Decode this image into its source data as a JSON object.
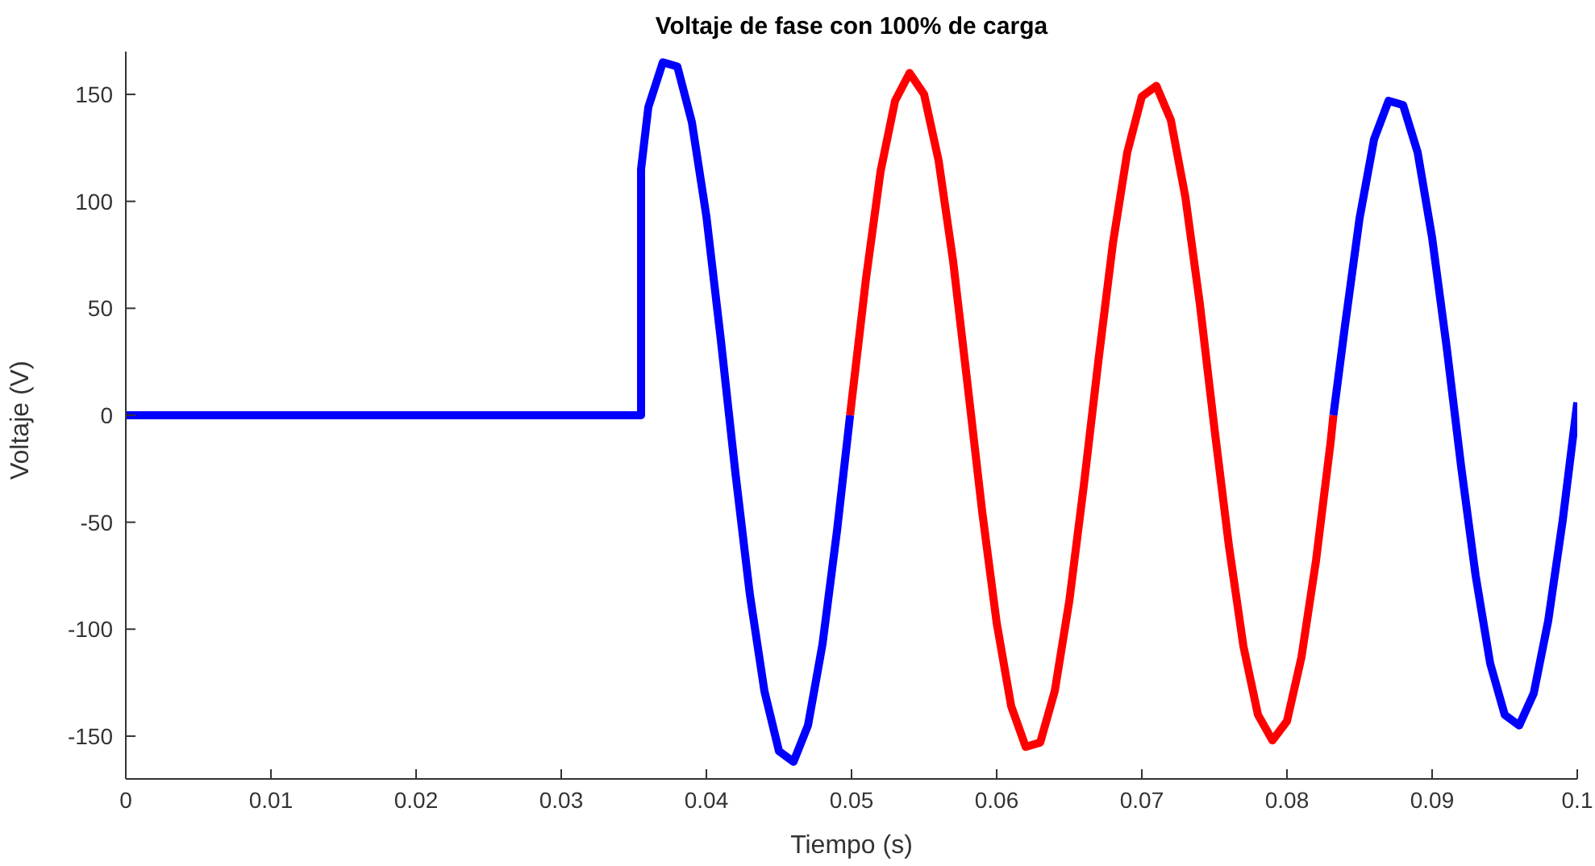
{
  "chart_data": {
    "type": "line",
    "title": "Voltaje de fase con 100% de carga",
    "xlabel": "Tiempo (s)",
    "ylabel": "Voltaje (V)",
    "xlim": [
      0,
      0.1
    ],
    "xticks": [
      0,
      0.01,
      0.02,
      0.03,
      0.04,
      0.05,
      0.06,
      0.07,
      0.08,
      0.09,
      0.1
    ],
    "ylim": [
      -170,
      170
    ],
    "yticks": [
      -150,
      -100,
      -50,
      0,
      50,
      100,
      150
    ],
    "grid": false,
    "legend": false,
    "marker": "none",
    "line_style": "solid",
    "series": [
      {
        "color": "#0000ff",
        "x": [
          0,
          0.0355,
          0.0355,
          0.036,
          0.037,
          0.038,
          0.039,
          0.04,
          0.041,
          0.042,
          0.043,
          0.044,
          0.045,
          0.046,
          0.047,
          0.048,
          0.049,
          0.0499
        ],
        "values": [
          0,
          0,
          115,
          144,
          165,
          163,
          137,
          93,
          35,
          -27,
          -84,
          -129,
          -157,
          -162,
          -145,
          -107,
          -54,
          0
        ]
      },
      {
        "color": "#ff0000",
        "x": [
          0.0499,
          0.05,
          0.051,
          0.052,
          0.053,
          0.054,
          0.055,
          0.056,
          0.057,
          0.058,
          0.059,
          0.06,
          0.061,
          0.062,
          0.063,
          0.064,
          0.065,
          0.066,
          0.067,
          0.068,
          0.069,
          0.07,
          0.071,
          0.072,
          0.073,
          0.074,
          0.075,
          0.076,
          0.077,
          0.078,
          0.079,
          0.08,
          0.081,
          0.082,
          0.083,
          0.0832
        ],
        "values": [
          0,
          6,
          64,
          114,
          147,
          160,
          150,
          119,
          72,
          14,
          -45,
          -97,
          -136,
          -155,
          -153,
          -129,
          -87,
          -33,
          25,
          80,
          123,
          149,
          154,
          138,
          102,
          52,
          -6,
          -61,
          -108,
          -140,
          -152,
          -143,
          -113,
          -68,
          -13,
          0
        ]
      },
      {
        "color": "#0000ff",
        "x": [
          0.0832,
          0.084,
          0.085,
          0.086,
          0.087,
          0.088,
          0.089,
          0.09,
          0.091,
          0.092,
          0.093,
          0.094,
          0.095,
          0.096,
          0.097,
          0.098,
          0.099,
          0.1
        ],
        "values": [
          0,
          42,
          92,
          129,
          147,
          145,
          123,
          83,
          32,
          -24,
          -75,
          -116,
          -140,
          -145,
          -130,
          -96,
          -49,
          6
        ]
      }
    ]
  }
}
